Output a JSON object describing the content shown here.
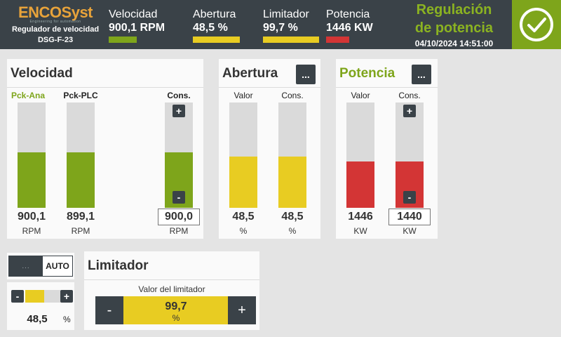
{
  "header": {
    "brand_part1": "ENCO",
    "brand_part2": "Syst",
    "brand_tagline": "Engineering for automation",
    "device_name": "Regulador de velocidad",
    "device_code": "DSG-F-23",
    "stats": [
      {
        "label": "Velocidad",
        "value": "900,1 RPM",
        "color": "#7ea51b"
      },
      {
        "label": "Abertura",
        "value": "48,5 %",
        "color": "#e8cc22"
      },
      {
        "label": "Limitador",
        "value": "99,7 %",
        "color": "#e8cc22"
      },
      {
        "label": "Potencia",
        "value": "1446 KW",
        "color": "#d33535"
      }
    ],
    "mode_title_line1": "Regulación",
    "mode_title_line2": "de potencia",
    "datetime": "04/10/2024 14:51:00",
    "status_icon": "check-circle-icon"
  },
  "velocidad": {
    "title": "Velocidad",
    "columns": [
      {
        "head": "Pck-Ana",
        "value": "900,1",
        "unit": "RPM",
        "level": 0.53
      },
      {
        "head": "Pck-PLC",
        "value": "899,1",
        "unit": "RPM",
        "level": 0.53
      },
      {
        "head": "Cons.",
        "value": "900,0",
        "unit": "RPM",
        "level": 0.53
      }
    ],
    "plus": "+",
    "minus": "-",
    "accent": "#7ea51b"
  },
  "abertura": {
    "title": "Abertura",
    "menu": "...",
    "columns": [
      {
        "head": "Valor",
        "value": "48,5",
        "unit": "%",
        "level": 0.485
      },
      {
        "head": "Cons.",
        "value": "48,5",
        "unit": "%",
        "level": 0.485
      }
    ],
    "accent": "#e8cc22"
  },
  "potencia": {
    "title": "Potencia",
    "menu": "...",
    "columns": [
      {
        "head": "Valor",
        "value": "1446",
        "unit": "KW",
        "level": 0.44
      },
      {
        "head": "Cons.",
        "value": "1440",
        "unit": "KW",
        "level": 0.44
      }
    ],
    "plus": "+",
    "minus": "-",
    "accent": "#d33535"
  },
  "mode": {
    "off_label": "...",
    "on_label": "AUTO"
  },
  "mini_limiter": {
    "minus": "-",
    "plus": "+",
    "value": "48,5",
    "unit": "%",
    "level": 0.485
  },
  "limitador": {
    "title": "Limitador",
    "field_label": "Valor del limitador",
    "minus": "-",
    "plus": "+",
    "value": "99,7",
    "unit": "%"
  }
}
